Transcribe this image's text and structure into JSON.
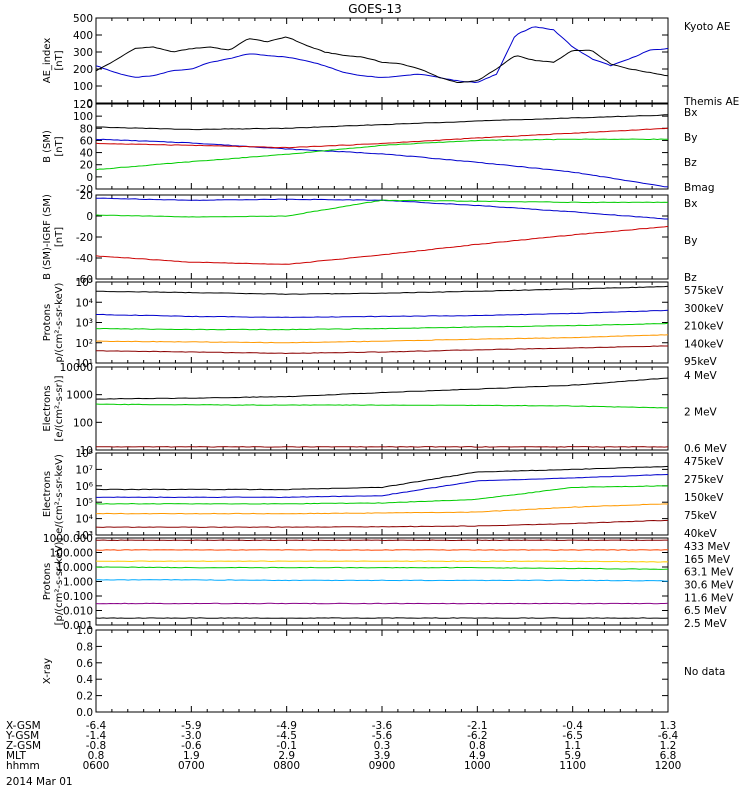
{
  "title": "GOES-13",
  "date_label": "2014 Mar 01",
  "ephemeris": {
    "rows": [
      {
        "label": "X-GSM",
        "values": [
          "-6.4",
          "-5.9",
          "-4.9",
          "-3.6",
          "-2.1",
          "-0.4",
          "1.3"
        ]
      },
      {
        "label": "Y-GSM",
        "values": [
          "-1.4",
          "-3.0",
          "-4.5",
          "-5.6",
          "-6.2",
          "-6.5",
          "-6.4"
        ]
      },
      {
        "label": "Z-GSM",
        "values": [
          "-0.8",
          "-0.6",
          "-0.1",
          "0.3",
          "0.8",
          "1.1",
          "1.2"
        ]
      },
      {
        "label": "MLT",
        "values": [
          "0.8",
          "1.9",
          "2.9",
          "3.9",
          "4.9",
          "5.9",
          "6.8"
        ]
      },
      {
        "label": "hhmm",
        "values": [
          "0600",
          "0700",
          "0800",
          "0900",
          "1000",
          "1100",
          "1200"
        ]
      }
    ]
  },
  "chart_data": [
    {
      "type": "line",
      "ylabel": [
        "AE_index",
        "[nT]"
      ],
      "ylim": [
        0,
        500
      ],
      "yticks": [
        "0",
        "100",
        "200",
        "300",
        "400",
        "500"
      ],
      "yscale": "linear",
      "series": [
        {
          "name": "Kyoto AE",
          "color": "#0000cc",
          "x": [
            6.0,
            6.2,
            6.4,
            6.6,
            6.8,
            7.0,
            7.2,
            7.4,
            7.6,
            7.8,
            8.0,
            8.2,
            8.4,
            8.6,
            8.8,
            9.0,
            9.2,
            9.4,
            9.6,
            9.8,
            10.0,
            10.2,
            10.4,
            10.6,
            10.8,
            11.0,
            11.2,
            11.4,
            11.6,
            11.8,
            12.0
          ],
          "y": [
            220,
            180,
            150,
            160,
            190,
            200,
            240,
            260,
            290,
            280,
            270,
            250,
            220,
            180,
            160,
            150,
            160,
            170,
            150,
            130,
            120,
            170,
            400,
            450,
            430,
            330,
            260,
            220,
            260,
            310,
            320
          ]
        },
        {
          "name": "Themis AE",
          "color": "#000000",
          "x": [
            6.0,
            6.2,
            6.4,
            6.6,
            6.8,
            7.0,
            7.2,
            7.4,
            7.6,
            7.8,
            8.0,
            8.2,
            8.4,
            8.6,
            8.8,
            9.0,
            9.2,
            9.4,
            9.6,
            9.8,
            10.0,
            10.2,
            10.4,
            10.6,
            10.8,
            11.0,
            11.2,
            11.4,
            11.6,
            11.8,
            12.0
          ],
          "y": [
            190,
            250,
            320,
            330,
            300,
            320,
            330,
            310,
            380,
            360,
            390,
            340,
            300,
            280,
            270,
            240,
            230,
            200,
            150,
            120,
            130,
            200,
            280,
            250,
            240,
            310,
            310,
            230,
            200,
            180,
            160
          ]
        }
      ]
    },
    {
      "type": "line",
      "ylabel": [
        "B (SM)",
        "[nT]"
      ],
      "ylim": [
        -20,
        120
      ],
      "yticks": [
        "-20",
        "0",
        "20",
        "40",
        "60",
        "80",
        "100",
        "120"
      ],
      "yscale": "linear",
      "series": [
        {
          "name": "Bx",
          "color": "#0000cc",
          "x": [
            6,
            7,
            8,
            9,
            10,
            11,
            12
          ],
          "y": [
            62,
            56,
            46,
            38,
            24,
            8,
            -17
          ]
        },
        {
          "name": "By",
          "color": "#00cc00",
          "x": [
            6,
            7,
            8,
            9,
            10,
            11,
            12
          ],
          "y": [
            12,
            25,
            37,
            52,
            60,
            62,
            62
          ]
        },
        {
          "name": "Bz",
          "color": "#cc0000",
          "x": [
            6,
            7,
            8,
            9,
            10,
            11,
            12
          ],
          "y": [
            55,
            52,
            48,
            55,
            64,
            72,
            80
          ]
        },
        {
          "name": "Bmag",
          "color": "#000000",
          "x": [
            6,
            7,
            8,
            9,
            10,
            11,
            12
          ],
          "y": [
            82,
            78,
            80,
            86,
            92,
            97,
            102
          ]
        }
      ]
    },
    {
      "type": "line",
      "ylabel": [
        "B (SM)-IGRF (SM)",
        "[nT]"
      ],
      "ylim": [
        -60,
        20
      ],
      "yticks": [
        "-60",
        "-40",
        "-20",
        "0",
        "20"
      ],
      "yscale": "linear",
      "series": [
        {
          "name": "Bx",
          "color": "#0000cc",
          "x": [
            6,
            7,
            8,
            9,
            10,
            11,
            12
          ],
          "y": [
            17,
            15,
            16,
            15,
            10,
            4,
            -3
          ]
        },
        {
          "name": "By",
          "color": "#00cc00",
          "x": [
            6,
            7,
            8,
            9,
            10,
            11,
            12
          ],
          "y": [
            1,
            -1,
            0,
            15,
            14,
            13,
            13
          ]
        },
        {
          "name": "Bz",
          "color": "#cc0000",
          "x": [
            6,
            7,
            8,
            9,
            10,
            11,
            12
          ],
          "y": [
            -38,
            -44,
            -46,
            -37,
            -27,
            -18,
            -10
          ]
        }
      ]
    },
    {
      "type": "line",
      "ylabel": [
        "Protons",
        "p/(cm²-s-sr-keV)"
      ],
      "ylim": [
        10,
        100000
      ],
      "yticks": [
        "10¹",
        "10²",
        "10³",
        "10⁴",
        "10⁵"
      ],
      "yscale": "log",
      "series": [
        {
          "name": "575keV",
          "color": "#8b0000",
          "x": [
            6,
            7,
            8,
            9,
            10,
            11,
            12
          ],
          "y": [
            40,
            35,
            30,
            35,
            45,
            55,
            70
          ]
        },
        {
          "name": "300keV",
          "color": "#ff9900",
          "x": [
            6,
            7,
            8,
            9,
            10,
            11,
            12
          ],
          "y": [
            120,
            110,
            100,
            120,
            150,
            180,
            250
          ]
        },
        {
          "name": "210keV",
          "color": "#00cc00",
          "x": [
            6,
            7,
            8,
            9,
            10,
            11,
            12
          ],
          "y": [
            500,
            450,
            450,
            500,
            600,
            700,
            900
          ]
        },
        {
          "name": "140keV",
          "color": "#0000cc",
          "x": [
            6,
            7,
            8,
            9,
            10,
            11,
            12
          ],
          "y": [
            2500,
            2000,
            1800,
            2000,
            2200,
            2800,
            4000
          ]
        },
        {
          "name": "95keV",
          "color": "#000000",
          "x": [
            6,
            7,
            8,
            9,
            10,
            11,
            12
          ],
          "y": [
            35000,
            30000,
            25000,
            28000,
            35000,
            45000,
            60000
          ]
        }
      ]
    },
    {
      "type": "line",
      "ylabel": [
        "Electrons",
        "[e/(cm²-s-sr)]"
      ],
      "ylim": [
        10,
        10000
      ],
      "yticks": [
        "10",
        "100",
        "1000",
        "10000"
      ],
      "yscale": "log",
      "series": [
        {
          "name": "4 MeV",
          "color": "#8b0000",
          "x": [
            6,
            7,
            8,
            9,
            10,
            11,
            12
          ],
          "y": [
            13,
            13,
            13,
            13,
            13,
            13,
            13
          ]
        },
        {
          "name": "2 MeV",
          "color": "#00cc00",
          "x": [
            6,
            7,
            8,
            9,
            10,
            11,
            12
          ],
          "y": [
            450,
            430,
            420,
            420,
            410,
            390,
            330
          ]
        },
        {
          "name": "0.6 MeV",
          "color": "#000000",
          "x": [
            6,
            7,
            8,
            9,
            10,
            11,
            12
          ],
          "y": [
            700,
            750,
            850,
            1200,
            1600,
            2200,
            4000
          ]
        }
      ]
    },
    {
      "type": "line",
      "ylabel": [
        "Electrons",
        "e/(cm²-s-sr-keV)"
      ],
      "ylim": [
        1000,
        100000000
      ],
      "yticks": [
        "10³",
        "10⁴",
        "10⁵",
        "10⁶",
        "10⁷",
        "10⁸"
      ],
      "yscale": "log",
      "series": [
        {
          "name": "475keV",
          "color": "#8b0000",
          "x": [
            6,
            7,
            8,
            9,
            10,
            11,
            12
          ],
          "y": [
            3000,
            3000,
            3000,
            3200,
            3500,
            5000,
            8000
          ]
        },
        {
          "name": "275keV",
          "color": "#ff9900",
          "x": [
            6,
            7,
            8,
            9,
            10,
            11,
            12
          ],
          "y": [
            20000,
            20000,
            20000,
            22000,
            25000,
            50000,
            80000
          ]
        },
        {
          "name": "150keV",
          "color": "#00cc00",
          "x": [
            6,
            7,
            8,
            9,
            10,
            11,
            12
          ],
          "y": [
            80000,
            80000,
            80000,
            90000,
            150000,
            800000,
            1000000
          ]
        },
        {
          "name": "75keV",
          "color": "#0000cc",
          "x": [
            6,
            7,
            8,
            9,
            10,
            11,
            12
          ],
          "y": [
            200000,
            200000,
            200000,
            250000,
            2000000,
            3000000,
            5000000
          ]
        },
        {
          "name": "40keV",
          "color": "#000000",
          "x": [
            6,
            7,
            8,
            9,
            10,
            11,
            12
          ],
          "y": [
            600000,
            600000,
            600000,
            800000,
            7000000,
            10000000,
            15000000
          ]
        }
      ]
    },
    {
      "type": "line",
      "ylabel": [
        "Protons",
        "[p/(cm²-s-sr-keV)]"
      ],
      "ylim": [
        0.001,
        1000
      ],
      "yticks": [
        "0.001",
        "0.010",
        "0.100",
        "1.000",
        "10.000",
        "100.000",
        "1000.000"
      ],
      "yscale": "log",
      "series": [
        {
          "name": "433 MeV",
          "color": "#8b0000",
          "x": [
            6,
            7,
            8,
            9,
            10,
            11,
            12
          ],
          "y": [
            700,
            700,
            700,
            700,
            700,
            700,
            700
          ]
        },
        {
          "name": "165 MeV",
          "color": "#ff4400",
          "x": [
            6,
            7,
            8,
            9,
            10,
            11,
            12
          ],
          "y": [
            150,
            150,
            150,
            150,
            150,
            150,
            150
          ]
        },
        {
          "name": "63.1 MeV",
          "color": "#ffcc00",
          "x": [
            6,
            7,
            8,
            9,
            10,
            11,
            12
          ],
          "y": [
            25,
            25,
            25,
            25,
            25,
            25,
            22
          ]
        },
        {
          "name": "30.6 MeV",
          "color": "#00cc00",
          "x": [
            6,
            7,
            8,
            9,
            10,
            11,
            12
          ],
          "y": [
            10,
            9,
            9,
            9,
            9,
            8,
            7
          ]
        },
        {
          "name": "11.6 MeV",
          "color": "#00aaff",
          "x": [
            6,
            7,
            8,
            9,
            10,
            11,
            12
          ],
          "y": [
            1.3,
            1.3,
            1.2,
            1.2,
            1.2,
            1.2,
            1.1
          ]
        },
        {
          "name": "6.5 MeV",
          "color": "#880088",
          "x": [
            6,
            7,
            8,
            9,
            10,
            11,
            12
          ],
          "y": [
            0.03,
            0.03,
            0.03,
            0.03,
            0.03,
            0.03,
            0.03
          ]
        },
        {
          "name": "2.5 MeV",
          "color": "#000000",
          "x": [
            6,
            7,
            8,
            9,
            10,
            11,
            12
          ],
          "y": [
            0.003,
            0.003,
            0.003,
            0.003,
            0.003,
            0.003,
            0.003
          ]
        }
      ]
    },
    {
      "type": "line",
      "ylabel": [
        "X-ray",
        ""
      ],
      "ylim": [
        0,
        1
      ],
      "yticks": [
        "0.0",
        "0.2",
        "0.4",
        "0.6",
        "0.8",
        "1.0"
      ],
      "yscale": "linear",
      "note": "No data",
      "series": []
    }
  ]
}
